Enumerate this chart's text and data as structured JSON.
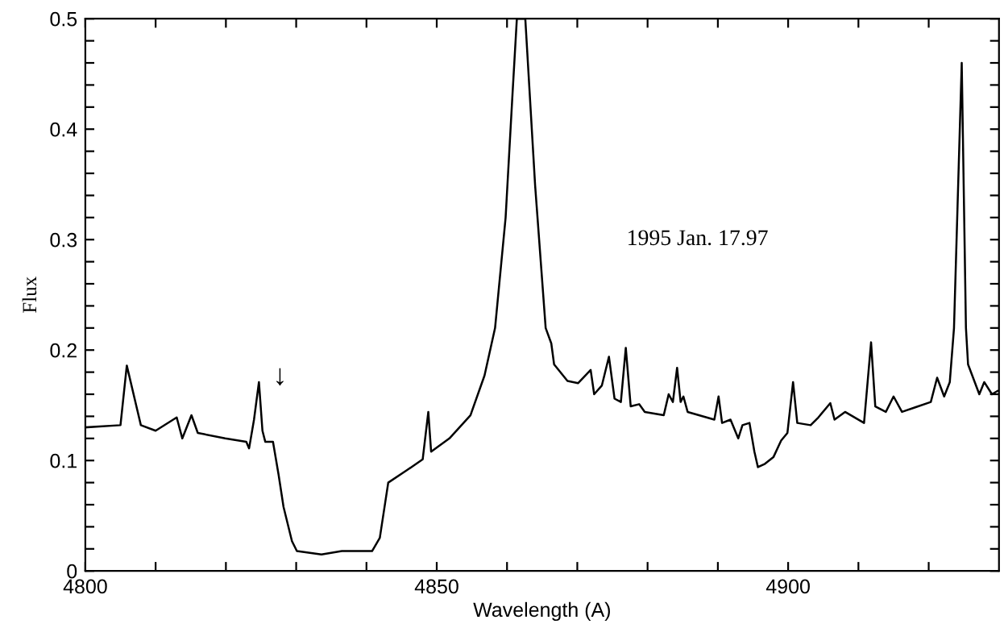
{
  "chart_data": {
    "type": "line",
    "xlabel": "Wavelength (A)",
    "ylabel": "Flux",
    "annotations": [
      "1995 Jan. 17.97",
      "↓"
    ],
    "xlim": [
      4800,
      4930
    ],
    "ylim": [
      0,
      0.5
    ],
    "xticks": [
      4800,
      {
        "value": 4810,
        "label": null
      },
      {
        "value": 4820,
        "label": null
      },
      {
        "value": 4830,
        "label": null
      },
      {
        "value": 4840,
        "label": null
      },
      4850,
      {
        "value": 4860,
        "label": null
      },
      {
        "value": 4870,
        "label": null
      },
      {
        "value": 4880,
        "label": null
      },
      {
        "value": 4890,
        "label": null
      },
      4900,
      {
        "value": 4910,
        "label": null
      },
      {
        "value": 4920,
        "label": null
      }
    ],
    "yticks": [
      0,
      {
        "value": 0.02,
        "label": null
      },
      {
        "value": 0.04,
        "label": null
      },
      {
        "value": 0.06,
        "label": null
      },
      {
        "value": 0.08,
        "label": null
      },
      0.1,
      {
        "value": 0.12,
        "label": null
      },
      {
        "value": 0.14,
        "label": null
      },
      {
        "value": 0.16,
        "label": null
      },
      {
        "value": 0.18,
        "label": null
      },
      0.2,
      {
        "value": 0.22,
        "label": null
      },
      {
        "value": 0.24,
        "label": null
      },
      {
        "value": 0.26,
        "label": null
      },
      {
        "value": 0.28,
        "label": null
      },
      0.3,
      {
        "value": 0.32,
        "label": null
      },
      {
        "value": 0.34,
        "label": null
      },
      {
        "value": 0.36,
        "label": null
      },
      {
        "value": 0.38,
        "label": null
      },
      0.4,
      {
        "value": 0.42,
        "label": null
      },
      {
        "value": 0.44,
        "label": null
      },
      {
        "value": 0.46,
        "label": null
      },
      {
        "value": 0.48,
        "label": null
      },
      0.5
    ],
    "grid": false,
    "legend": false,
    "marker": "none",
    "line_style": "solid",
    "series": [
      {
        "color": "#000000",
        "x": [
          4800,
          4805,
          4805.9,
          4807.9,
          4810,
          4813,
          4813.8,
          4815.1,
          4816,
          4819.9,
          4822.9,
          4823.3,
          4824,
          4824.7,
          4825.2,
          4825.6,
          4826.7,
          4827.5,
          4828.2,
          4829.4,
          4830.1,
          4833.6,
          4836.5,
          4840.8,
          4841.9,
          4843.1,
          4845.7,
          4848,
          4848.8,
          4849.2,
          4851.8,
          4854.8,
          4856.8,
          4858.3,
          4859.8,
          4860.8,
          4861.4,
          4862.6,
          4864,
          4865.5,
          4866.3,
          4866.7,
          4868.6,
          4870.1,
          4871.9,
          4872.4,
          4873.5,
          4874.5,
          4875.3,
          4876.2,
          4876.9,
          4877.6,
          4878.8,
          4879.6,
          4882.3,
          4883,
          4883.6,
          4884.2,
          4884.7,
          4885.1,
          4885.7,
          4888.4,
          4889.5,
          4890.1,
          4890.6,
          4891.8,
          4892.9,
          4893.5,
          4894.5,
          4895.2,
          4895.7,
          4896.7,
          4897.9,
          4899,
          4899.9,
          4900.7,
          4901.3,
          4903.2,
          4904.3,
          4906,
          4906.6,
          4908.1,
          4910.8,
          4911.8,
          4912.4,
          4913.9,
          4915,
          4916.2,
          4918,
          4920.3,
          4921.2,
          4922.2,
          4923,
          4923.6,
          4924.7,
          4925.3,
          4925.6,
          4927.2,
          4927.9,
          4929,
          4929.8
        ],
        "values": [
          0.13,
          0.132,
          0.186,
          0.132,
          0.127,
          0.139,
          0.12,
          0.141,
          0.125,
          0.12,
          0.117,
          0.111,
          0.137,
          0.171,
          0.127,
          0.117,
          0.117,
          0.087,
          0.058,
          0.027,
          0.018,
          0.015,
          0.018,
          0.018,
          0.03,
          0.08,
          0.091,
          0.101,
          0.144,
          0.108,
          0.12,
          0.141,
          0.177,
          0.22,
          0.32,
          0.434,
          0.5,
          0.5,
          0.349,
          0.22,
          0.206,
          0.187,
          0.172,
          0.17,
          0.182,
          0.16,
          0.168,
          0.194,
          0.156,
          0.153,
          0.202,
          0.149,
          0.151,
          0.144,
          0.141,
          0.16,
          0.153,
          0.184,
          0.153,
          0.158,
          0.144,
          0.139,
          0.137,
          0.158,
          0.134,
          0.137,
          0.12,
          0.132,
          0.134,
          0.108,
          0.094,
          0.097,
          0.103,
          0.118,
          0.125,
          0.171,
          0.134,
          0.132,
          0.139,
          0.152,
          0.137,
          0.144,
          0.134,
          0.207,
          0.149,
          0.144,
          0.158,
          0.144,
          0.148,
          0.153,
          0.175,
          0.158,
          0.171,
          0.22,
          0.46,
          0.22,
          0.187,
          0.16,
          0.171,
          0.16,
          0.163
        ]
      }
    ]
  }
}
